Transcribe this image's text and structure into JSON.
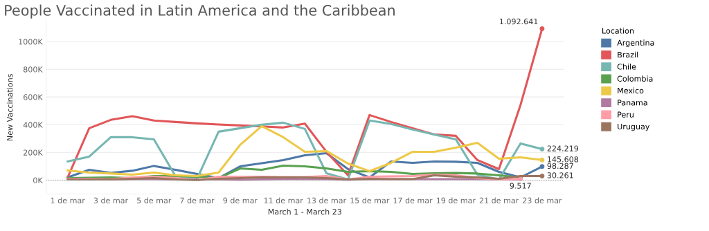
{
  "chart_data": {
    "type": "line",
    "title": "People Vaccinated in Latin America and the Caribbean",
    "xlabel": "March 1 - March 23",
    "ylabel": "New Vaccinations",
    "legend_title": "Location",
    "categories": [
      "1 de mar",
      null,
      "3 de mar",
      null,
      "5 de mar",
      null,
      "7 de mar",
      null,
      "9 de mar",
      null,
      "11 de mar",
      null,
      "13 de mar",
      null,
      "15 de mar",
      null,
      "17 de mar",
      null,
      "19 de mar",
      null,
      "21 de mar",
      null,
      "23 de mar"
    ],
    "series": [
      {
        "name": "Argentina",
        "color": "#4e79a7",
        "values": [
          20000,
          75000,
          52000,
          68000,
          103000,
          75000,
          45000,
          15000,
          100000,
          122000,
          145000,
          180000,
          195000,
          80000,
          20000,
          135000,
          125000,
          135000,
          133000,
          125000,
          60000,
          20000,
          98287
        ],
        "value_labels": [
          null,
          null,
          null,
          null,
          null,
          null,
          null,
          null,
          null,
          null,
          null,
          null,
          null,
          null,
          null,
          null,
          null,
          null,
          null,
          null,
          null,
          null,
          "98.287"
        ]
      },
      {
        "name": "Brazil",
        "color": "#e15759",
        "values": [
          20000,
          375000,
          435000,
          462000,
          430000,
          420000,
          410000,
          402000,
          395000,
          388000,
          380000,
          408000,
          205000,
          35000,
          470000,
          420000,
          375000,
          330000,
          320000,
          145000,
          80000,
          543000,
          1092641
        ],
        "value_labels": [
          null,
          null,
          null,
          null,
          null,
          null,
          null,
          null,
          null,
          null,
          null,
          null,
          null,
          null,
          null,
          null,
          null,
          null,
          null,
          null,
          null,
          null,
          "1.092.641"
        ]
      },
      {
        "name": "Chile",
        "color": "#76b7b2",
        "values": [
          135000,
          170000,
          310000,
          310000,
          295000,
          30000,
          10000,
          350000,
          375000,
          400000,
          415000,
          370000,
          50000,
          5000,
          430000,
          405000,
          365000,
          330000,
          295000,
          40000,
          5000,
          265000,
          224219
        ],
        "value_labels": [
          null,
          null,
          null,
          null,
          null,
          null,
          null,
          null,
          null,
          null,
          null,
          null,
          null,
          null,
          null,
          null,
          null,
          null,
          null,
          null,
          null,
          null,
          "224.219"
        ]
      },
      {
        "name": "Colombia",
        "color": "#59a14f",
        "values": [
          15000,
          18000,
          20000,
          15000,
          30000,
          30000,
          25000,
          15000,
          85000,
          75000,
          105000,
          100000,
          85000,
          60000,
          65000,
          60000,
          45000,
          50000,
          52000,
          48000,
          35000,
          20000,
          null
        ]
      },
      {
        "name": "Mexico",
        "color": "#edc948",
        "values": [
          70000,
          55000,
          48000,
          40000,
          55000,
          35000,
          30000,
          55000,
          255000,
          390000,
          310000,
          205000,
          210000,
          120000,
          65000,
          125000,
          205000,
          205000,
          235000,
          270000,
          155000,
          165000,
          145608
        ],
        "value_labels": [
          null,
          null,
          null,
          null,
          null,
          null,
          null,
          null,
          null,
          null,
          null,
          null,
          null,
          null,
          null,
          null,
          null,
          null,
          null,
          null,
          null,
          null,
          "145.608"
        ]
      },
      {
        "name": "Panama",
        "color": "#b07aa1",
        "values": [
          5000,
          5000,
          5000,
          8000,
          8000,
          5000,
          5000,
          5000,
          3000,
          5000,
          8000,
          8000,
          8000,
          3000,
          8000,
          8000,
          8000,
          8000,
          8000,
          8000,
          5000,
          5000,
          null
        ]
      },
      {
        "name": "Peru",
        "color": "#ff9da7",
        "values": [
          10000,
          10000,
          8000,
          20000,
          25000,
          15000,
          0,
          25000,
          25000,
          25000,
          22000,
          22000,
          30000,
          5000,
          25000,
          28000,
          30000,
          40000,
          35000,
          15000,
          5000,
          9517,
          null
        ],
        "value_labels": [
          null,
          null,
          null,
          null,
          null,
          null,
          null,
          null,
          null,
          null,
          null,
          null,
          null,
          null,
          null,
          null,
          null,
          null,
          null,
          null,
          null,
          "9.517",
          null
        ]
      },
      {
        "name": "Uruguay",
        "color": "#9c755f",
        "values": [
          5000,
          5000,
          5000,
          10000,
          15000,
          5000,
          0,
          10000,
          15000,
          20000,
          20000,
          20000,
          15000,
          5000,
          10000,
          8000,
          8000,
          35000,
          25000,
          20000,
          10000,
          30000,
          30261
        ],
        "value_labels": [
          null,
          null,
          null,
          null,
          null,
          null,
          null,
          null,
          null,
          null,
          null,
          null,
          null,
          null,
          null,
          null,
          null,
          null,
          null,
          null,
          null,
          null,
          "30.261"
        ]
      }
    ],
    "ylim": [
      -100000,
      1150000
    ],
    "yticks": [
      {
        "value": 0,
        "label": "0K"
      },
      {
        "value": 200000,
        "label": "200K"
      },
      {
        "value": 400000,
        "label": "400K"
      },
      {
        "value": 600000,
        "label": "600K"
      },
      {
        "value": 800000,
        "label": "800K"
      },
      {
        "value": 1000000,
        "label": "1000K"
      }
    ],
    "ref_lines": [
      {
        "axis": "y",
        "value": 0,
        "color": "#aaaaaa",
        "line_style": "dotted"
      }
    ],
    "grid": "y",
    "legend": "right",
    "marker": "none",
    "line_style": "solid"
  }
}
